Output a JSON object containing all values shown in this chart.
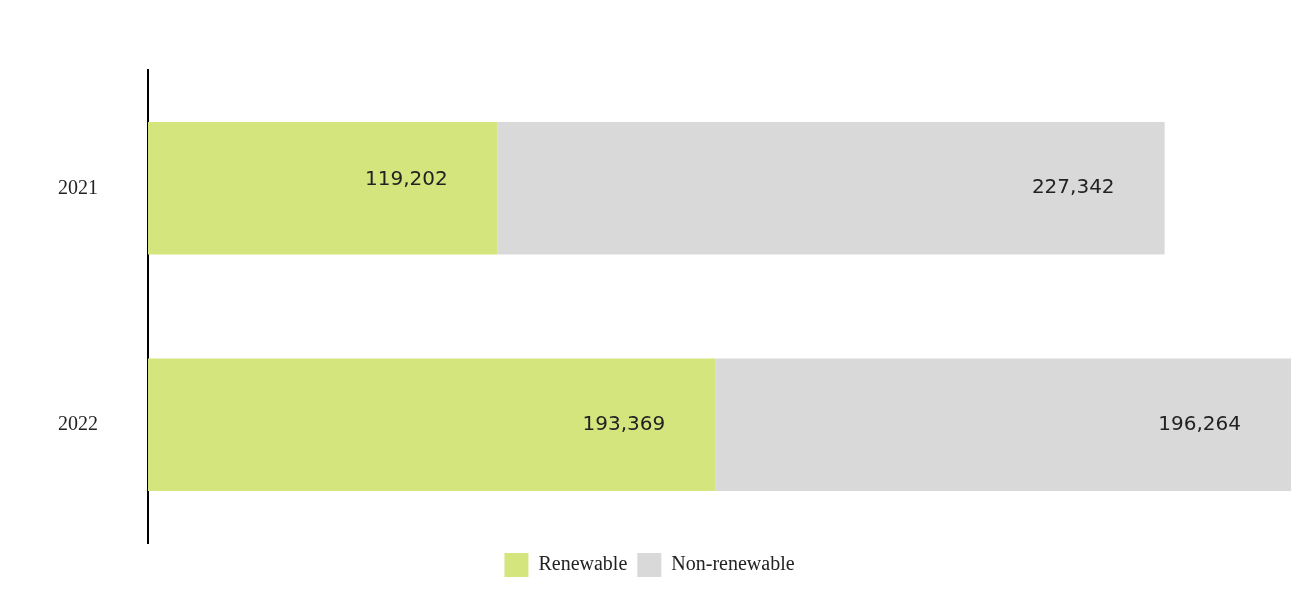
{
  "chart_data": {
    "type": "bar",
    "orientation": "horizontal",
    "stacked": true,
    "categories": [
      "2021",
      "2022"
    ],
    "series": [
      {
        "name": "Renewable",
        "color": "#d4e57e",
        "values": [
          119202,
          193369
        ],
        "value_labels": [
          "119,202",
          "193,369"
        ]
      },
      {
        "name": "Non-renewable",
        "color": "#d9d9d9",
        "values": [
          227342,
          196264
        ],
        "value_labels": [
          "227,342",
          "196,264"
        ]
      }
    ],
    "legend": "bottom"
  }
}
